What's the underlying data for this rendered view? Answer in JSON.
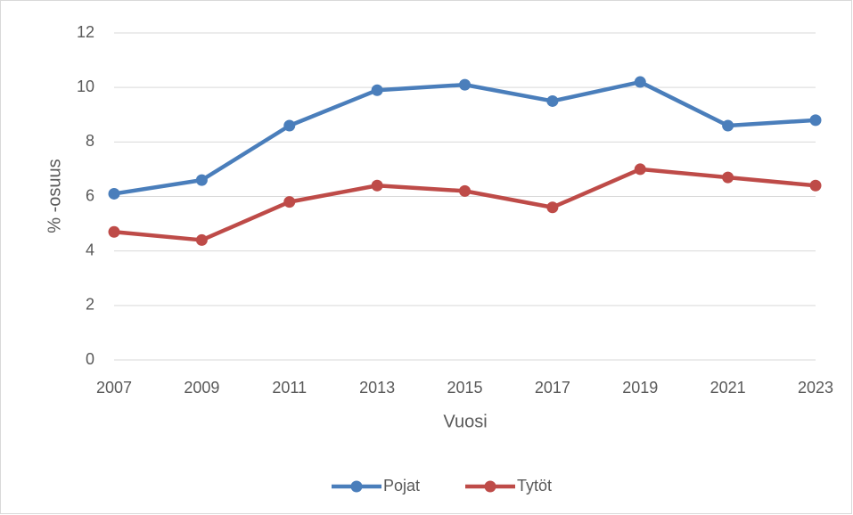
{
  "chart_data": {
    "type": "line",
    "x_label": "Vuosi",
    "y_label": "% -osuus",
    "categories": [
      "2007",
      "2009",
      "2011",
      "2013",
      "2015",
      "2017",
      "2019",
      "2021",
      "2023"
    ],
    "series": [
      {
        "name": "Pojat",
        "color": "#4a7ebb",
        "values": [
          6.1,
          6.6,
          8.6,
          9.9,
          10.1,
          9.5,
          10.2,
          8.6,
          8.8
        ]
      },
      {
        "name": "Tytöt",
        "color": "#be4b48",
        "values": [
          4.7,
          4.4,
          5.8,
          6.4,
          6.2,
          5.6,
          7.0,
          6.7,
          6.4
        ]
      }
    ],
    "ylim": [
      0,
      12
    ],
    "yticks": [
      0,
      2,
      4,
      6,
      8,
      10,
      12
    ],
    "grid": true,
    "legend": "bottom"
  }
}
